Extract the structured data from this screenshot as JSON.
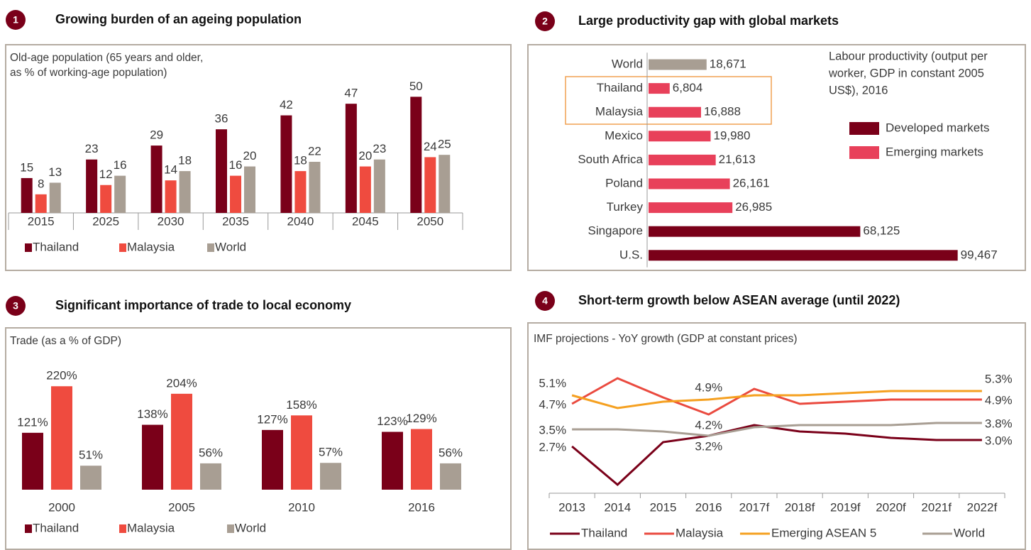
{
  "chart_data": [
    {
      "panel": "1",
      "type": "bar",
      "title": "Growing burden of an ageing population",
      "subtitle": [
        "Old-age population (65 years and older,",
        "as % of working-age population)"
      ],
      "categories": [
        "2015",
        "2025",
        "2030",
        "2035",
        "2040",
        "2045",
        "2050"
      ],
      "series": [
        {
          "name": "Thailand",
          "color": "#7a0019",
          "values": [
            15,
            23,
            29,
            36,
            42,
            47,
            50
          ]
        },
        {
          "name": "Malaysia",
          "color": "#ef4b3f",
          "values": [
            8,
            12,
            14,
            16,
            18,
            20,
            24
          ]
        },
        {
          "name": "World",
          "color": "#a89e93",
          "values": [
            13,
            16,
            18,
            20,
            22,
            23,
            25
          ]
        }
      ],
      "ylim": [
        0,
        55
      ]
    },
    {
      "panel": "2",
      "type": "barh",
      "title": "Large productivity gap with global markets",
      "annotation": [
        "Labour productivity (output per",
        "worker, GDP in constant 2005",
        "US$), 2016"
      ],
      "categories": [
        "World",
        "Thailand",
        "Malaysia",
        "Mexico",
        "South Africa",
        "Poland",
        "Turkey",
        "Singapore",
        "U.S."
      ],
      "values": [
        18671,
        6804,
        16888,
        19980,
        21613,
        26161,
        26985,
        68125,
        99467
      ],
      "value_labels": [
        "18,671",
        "6,804",
        "16,888",
        "19,980",
        "21,613",
        "26,161",
        "26,985",
        "68,125",
        "99,467"
      ],
      "colors": [
        "#a89e93",
        "#e8405a",
        "#e8405a",
        "#e8405a",
        "#e8405a",
        "#e8405a",
        "#e8405a",
        "#7a0019",
        "#7a0019"
      ],
      "legend": [
        {
          "name": "Developed markets",
          "color": "#7a0019"
        },
        {
          "name": "Emerging markets",
          "color": "#e8405a"
        }
      ],
      "xlim": [
        0,
        100000
      ]
    },
    {
      "panel": "3",
      "type": "bar",
      "title": "Significant importance of trade to local economy",
      "subtitle": [
        "Trade (as a % of GDP)"
      ],
      "categories": [
        "2000",
        "2005",
        "2010",
        "2016"
      ],
      "series": [
        {
          "name": "Thailand",
          "color": "#7a0019",
          "values": [
            121,
            138,
            127,
            123
          ],
          "value_labels": [
            "121%",
            "138%",
            "127%",
            "123%"
          ]
        },
        {
          "name": "Malaysia",
          "color": "#ef4b3f",
          "values": [
            220,
            204,
            158,
            129
          ],
          "value_labels": [
            "220%",
            "204%",
            "158%",
            "129%"
          ]
        },
        {
          "name": "World",
          "color": "#a89e93",
          "values": [
            51,
            56,
            57,
            56
          ],
          "value_labels": [
            "51%",
            "56%",
            "57%",
            "56%"
          ]
        }
      ],
      "ylim": [
        0,
        240
      ]
    },
    {
      "panel": "4",
      "type": "line",
      "title": "Short-term growth below ASEAN average (until 2022)",
      "subtitle": [
        "IMF projections - YoY growth (GDP at constant prices)"
      ],
      "categories": [
        "2013",
        "2014",
        "2015",
        "2016",
        "2017f",
        "2018f",
        "2019f",
        "2020f",
        "2021f",
        "2022f"
      ],
      "series": [
        {
          "name": "Thailand",
          "color": "#7a0019",
          "values": [
            2.7,
            0.9,
            2.9,
            3.2,
            3.7,
            3.4,
            3.3,
            3.1,
            3.0,
            3.0
          ],
          "value_labels": [
            "2.7%",
            null,
            null,
            null,
            null,
            null,
            null,
            null,
            null,
            "3.0%"
          ]
        },
        {
          "name": "Malaysia",
          "color": "#ea4a3f",
          "values": [
            4.7,
            5.9,
            5.0,
            4.2,
            5.4,
            4.7,
            4.8,
            4.9,
            4.9,
            4.9
          ],
          "value_labels": [
            "4.7%",
            null,
            null,
            "4.2%",
            null,
            null,
            null,
            null,
            null,
            "4.9%"
          ]
        },
        {
          "name": "Emerging ASEAN 5",
          "color": "#f5a020",
          "values": [
            5.1,
            4.5,
            4.8,
            4.9,
            5.1,
            5.1,
            5.2,
            5.3,
            5.3,
            5.3
          ],
          "value_labels": [
            "5.1%",
            null,
            null,
            "4.9%",
            null,
            null,
            null,
            null,
            null,
            "5.3%"
          ]
        },
        {
          "name": "World",
          "color": "#a89e93",
          "values": [
            3.5,
            3.5,
            3.4,
            3.2,
            3.6,
            3.7,
            3.7,
            3.7,
            3.8,
            3.8
          ],
          "value_labels": [
            "3.5%",
            null,
            null,
            "3.2%",
            null,
            null,
            null,
            null,
            null,
            "3.8%"
          ]
        }
      ],
      "ylim": [
        0.5,
        7
      ]
    }
  ]
}
